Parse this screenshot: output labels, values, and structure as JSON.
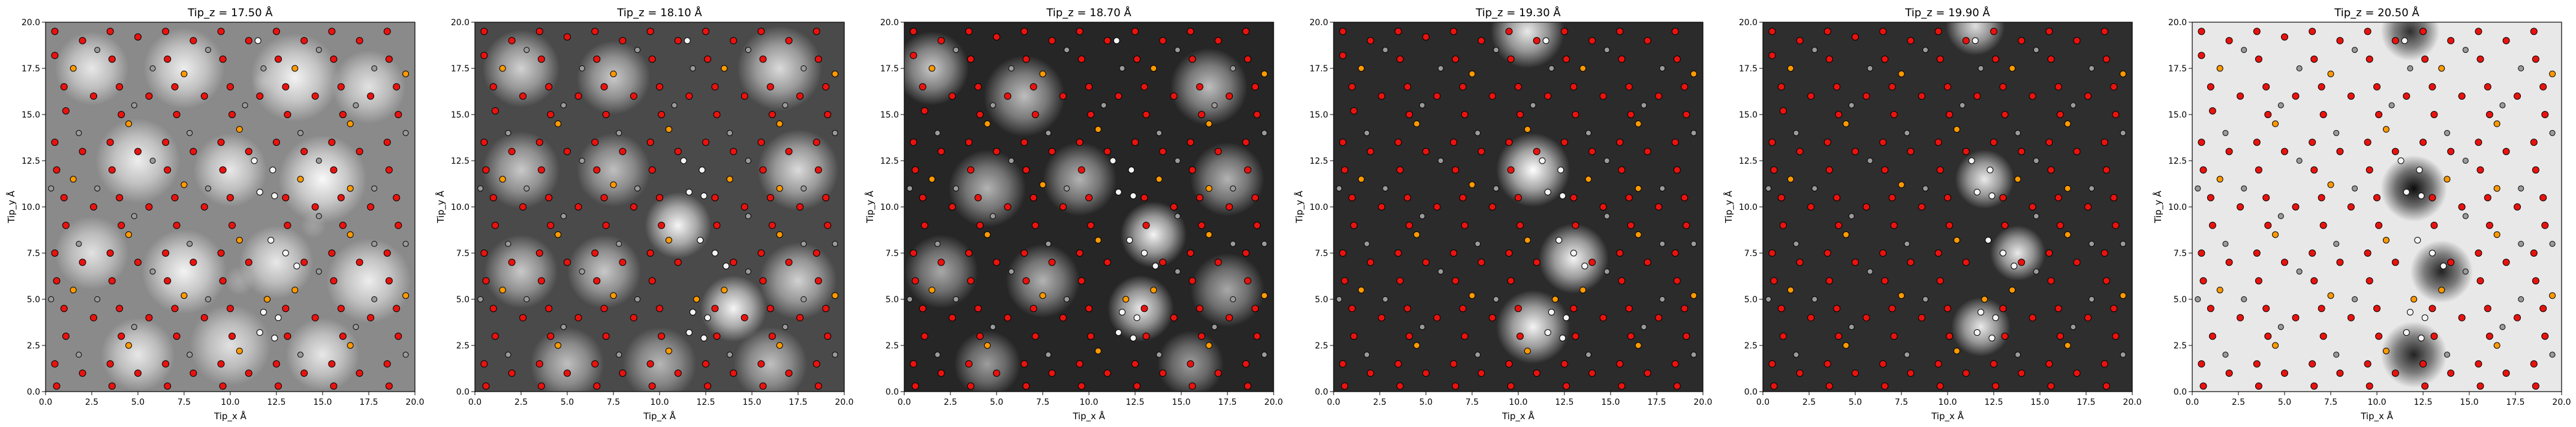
{
  "figure": {
    "description_none": ""
  },
  "chart_data": [
    {
      "type": "heatmap",
      "title": "Tip_z = 17.50 Å",
      "xlabel": "Tip_x Å",
      "ylabel": "Tip_y Å",
      "xlim": [
        0.0,
        20.0
      ],
      "ylim": [
        0.0,
        20.0
      ],
      "xticks": [
        "0.0",
        "2.5",
        "5.0",
        "7.5",
        "10.0",
        "12.5",
        "15.0",
        "17.5",
        "20.0"
      ],
      "yticks": [
        "0.0",
        "2.5",
        "5.0",
        "7.5",
        "10.0",
        "12.5",
        "15.0",
        "17.5",
        "20.0"
      ],
      "colormap": "gray",
      "background": "#8a8a8a",
      "blobs": [
        {
          "x": 2.5,
          "y": 17.5,
          "r": 2.0,
          "v": 0.8
        },
        {
          "x": 7.5,
          "y": 17.5,
          "r": 2.2,
          "v": 0.85
        },
        {
          "x": 13.5,
          "y": 17.0,
          "r": 2.4,
          "v": 0.9
        },
        {
          "x": 17.5,
          "y": 16.5,
          "r": 2.0,
          "v": 0.75
        },
        {
          "x": 5.0,
          "y": 12.5,
          "r": 2.3,
          "v": 0.85
        },
        {
          "x": 10.0,
          "y": 12.0,
          "r": 2.0,
          "v": 0.8
        },
        {
          "x": 15.0,
          "y": 11.5,
          "r": 2.4,
          "v": 0.95
        },
        {
          "x": 2.5,
          "y": 7.5,
          "r": 2.0,
          "v": 0.75
        },
        {
          "x": 7.5,
          "y": 6.5,
          "r": 2.3,
          "v": 0.9
        },
        {
          "x": 12.5,
          "y": 7.0,
          "r": 2.0,
          "v": 0.8
        },
        {
          "x": 17.5,
          "y": 6.0,
          "r": 2.3,
          "v": 0.85
        },
        {
          "x": 5.0,
          "y": 2.0,
          "r": 2.0,
          "v": 0.8
        },
        {
          "x": 10.0,
          "y": 2.5,
          "r": 2.2,
          "v": 0.75
        },
        {
          "x": 15.0,
          "y": 2.0,
          "r": 2.0,
          "v": 0.8
        },
        {
          "x": 11.8,
          "y": 16.8,
          "r": 0.6,
          "v": 0.15
        },
        {
          "x": 10.5,
          "y": 6.0,
          "r": 0.8,
          "v": 0.25
        },
        {
          "x": 14.5,
          "y": 9.0,
          "r": 0.7,
          "v": 0.2
        }
      ]
    },
    {
      "type": "heatmap",
      "title": "Tip_z = 18.10 Å",
      "xlabel": "Tip_x Å",
      "ylabel": "Tip_y Å",
      "xlim": [
        0.0,
        20.0
      ],
      "ylim": [
        0.0,
        20.0
      ],
      "xticks": [
        "0.0",
        "2.5",
        "5.0",
        "7.5",
        "10.0",
        "12.5",
        "15.0",
        "17.5",
        "20.0"
      ],
      "yticks": [
        "0.0",
        "2.5",
        "5.0",
        "7.5",
        "10.0",
        "12.5",
        "15.0",
        "17.5",
        "20.0"
      ],
      "colormap": "gray",
      "background": "#4a4a4a",
      "blobs": [
        {
          "x": 2.5,
          "y": 17.5,
          "r": 2.1,
          "v": 0.75
        },
        {
          "x": 7.5,
          "y": 17.0,
          "r": 2.0,
          "v": 0.7
        },
        {
          "x": 16.5,
          "y": 17.5,
          "r": 2.3,
          "v": 0.8
        },
        {
          "x": 2.5,
          "y": 12.0,
          "r": 2.1,
          "v": 0.7
        },
        {
          "x": 7.5,
          "y": 12.0,
          "r": 2.0,
          "v": 0.65
        },
        {
          "x": 17.5,
          "y": 12.0,
          "r": 2.2,
          "v": 0.8
        },
        {
          "x": 11.0,
          "y": 9.0,
          "r": 1.8,
          "v": 0.95
        },
        {
          "x": 14.0,
          "y": 4.5,
          "r": 1.8,
          "v": 0.95
        },
        {
          "x": 2.5,
          "y": 6.5,
          "r": 2.0,
          "v": 0.7
        },
        {
          "x": 7.0,
          "y": 6.5,
          "r": 2.0,
          "v": 0.7
        },
        {
          "x": 17.5,
          "y": 6.0,
          "r": 2.1,
          "v": 0.75
        },
        {
          "x": 5.0,
          "y": 1.5,
          "r": 2.0,
          "v": 0.65
        },
        {
          "x": 10.0,
          "y": 1.5,
          "r": 2.0,
          "v": 0.6
        },
        {
          "x": 16.0,
          "y": 1.5,
          "r": 2.0,
          "v": 0.65
        },
        {
          "x": 12.0,
          "y": 17.0,
          "r": 1.2,
          "v": 0.0
        },
        {
          "x": 13.0,
          "y": 7.0,
          "r": 1.0,
          "v": 0.0
        }
      ]
    },
    {
      "type": "heatmap",
      "title": "Tip_z = 18.70 Å",
      "xlabel": "Tip_x Å",
      "ylabel": "Tip_y Å",
      "xlim": [
        0.0,
        20.0
      ],
      "ylim": [
        0.0,
        20.0
      ],
      "xticks": [
        "0.0",
        "2.5",
        "5.0",
        "7.5",
        "10.0",
        "12.5",
        "15.0",
        "17.5",
        "20.0"
      ],
      "yticks": [
        "0.0",
        "2.5",
        "5.0",
        "7.5",
        "10.0",
        "12.5",
        "15.0",
        "17.5",
        "20.0"
      ],
      "colormap": "gray",
      "background": "#262626",
      "blobs": [
        {
          "x": 1.5,
          "y": 17.5,
          "r": 2.0,
          "v": 0.75
        },
        {
          "x": 6.5,
          "y": 16.0,
          "r": 2.2,
          "v": 0.7
        },
        {
          "x": 16.5,
          "y": 16.5,
          "r": 2.1,
          "v": 0.7
        },
        {
          "x": 4.5,
          "y": 11.0,
          "r": 2.1,
          "v": 0.65
        },
        {
          "x": 9.5,
          "y": 11.5,
          "r": 2.0,
          "v": 0.65
        },
        {
          "x": 17.5,
          "y": 11.5,
          "r": 2.0,
          "v": 0.65
        },
        {
          "x": 13.5,
          "y": 8.5,
          "r": 1.8,
          "v": 0.95
        },
        {
          "x": 12.8,
          "y": 4.5,
          "r": 1.8,
          "v": 0.9
        },
        {
          "x": 2.0,
          "y": 6.5,
          "r": 2.0,
          "v": 0.6
        },
        {
          "x": 7.5,
          "y": 6.0,
          "r": 2.0,
          "v": 0.65
        },
        {
          "x": 17.5,
          "y": 5.5,
          "r": 2.0,
          "v": 0.6
        },
        {
          "x": 4.5,
          "y": 1.5,
          "r": 1.8,
          "v": 0.55
        },
        {
          "x": 15.5,
          "y": 1.5,
          "r": 1.8,
          "v": 0.55
        }
      ]
    },
    {
      "type": "heatmap",
      "title": "Tip_z = 19.30 Å",
      "xlabel": "Tip_x Å",
      "ylabel": "Tip_y Å",
      "xlim": [
        0.0,
        20.0
      ],
      "ylim": [
        0.0,
        20.0
      ],
      "xticks": [
        "0.0",
        "2.5",
        "5.0",
        "7.5",
        "10.0",
        "12.5",
        "15.0",
        "17.5",
        "20.0"
      ],
      "yticks": [
        "0.0",
        "2.5",
        "5.0",
        "7.5",
        "10.0",
        "12.5",
        "15.0",
        "17.5",
        "20.0"
      ],
      "colormap": "gray",
      "background": "#2b2b2b",
      "blobs": [
        {
          "x": 10.5,
          "y": 19.5,
          "r": 2.0,
          "v": 0.9
        },
        {
          "x": 10.8,
          "y": 12.0,
          "r": 2.0,
          "v": 1.0
        },
        {
          "x": 13.0,
          "y": 7.2,
          "r": 1.9,
          "v": 0.95
        },
        {
          "x": 10.8,
          "y": 3.5,
          "r": 2.0,
          "v": 0.95
        }
      ]
    },
    {
      "type": "heatmap",
      "title": "Tip_z = 19.90 Å",
      "xlabel": "Tip_x Å",
      "ylabel": "Tip_y Å",
      "xlim": [
        0.0,
        20.0
      ],
      "ylim": [
        0.0,
        20.0
      ],
      "xticks": [
        "0.0",
        "2.5",
        "5.0",
        "7.5",
        "10.0",
        "12.5",
        "15.0",
        "17.5",
        "20.0"
      ],
      "yticks": [
        "0.0",
        "2.5",
        "5.0",
        "7.5",
        "10.0",
        "12.5",
        "15.0",
        "17.5",
        "20.0"
      ],
      "colormap": "gray",
      "background": "#2e2e2e",
      "blobs": [
        {
          "x": 11.5,
          "y": 19.8,
          "r": 1.6,
          "v": 0.85
        },
        {
          "x": 12.0,
          "y": 11.5,
          "r": 1.6,
          "v": 0.9
        },
        {
          "x": 13.8,
          "y": 7.5,
          "r": 1.5,
          "v": 0.9
        },
        {
          "x": 11.8,
          "y": 3.5,
          "r": 1.6,
          "v": 0.9
        }
      ]
    },
    {
      "type": "heatmap",
      "title": "Tip_z = 20.50 Å",
      "xlabel": "Tip_x Å",
      "ylabel": "Tip_y Å",
      "xlim": [
        0.0,
        20.0
      ],
      "ylim": [
        0.0,
        20.0
      ],
      "xticks": [
        "0.0",
        "2.5",
        "5.0",
        "7.5",
        "10.0",
        "12.5",
        "15.0",
        "17.5",
        "20.0"
      ],
      "yticks": [
        "0.0",
        "2.5",
        "5.0",
        "7.5",
        "10.0",
        "12.5",
        "15.0",
        "17.5",
        "20.0"
      ],
      "colormap": "gray",
      "background": "#e8e8e8",
      "blobs": [
        {
          "x": 11.8,
          "y": 19.5,
          "r": 1.6,
          "v": -0.8
        },
        {
          "x": 12.0,
          "y": 11.0,
          "r": 1.8,
          "v": -0.95
        },
        {
          "x": 13.5,
          "y": 6.5,
          "r": 1.7,
          "v": -0.85
        },
        {
          "x": 12.0,
          "y": 2.0,
          "r": 1.8,
          "v": -0.85
        }
      ]
    }
  ],
  "atoms": {
    "colors": {
      "red": "#e8130f",
      "orange": "#ff9900",
      "gray": "#9a9a9a",
      "white": "#f4f4f4"
    },
    "red": [
      [
        0.5,
        19.5
      ],
      [
        0.5,
        18.2
      ],
      [
        2.0,
        19.0
      ],
      [
        3.5,
        19.5
      ],
      [
        3.6,
        18.0
      ],
      [
        5.0,
        19.2
      ],
      [
        6.5,
        19.5
      ],
      [
        6.6,
        18.0
      ],
      [
        8.0,
        19.0
      ],
      [
        9.5,
        19.5
      ],
      [
        9.6,
        18.0
      ],
      [
        11.0,
        19.0
      ],
      [
        12.5,
        19.5
      ],
      [
        12.6,
        18.0
      ],
      [
        14.0,
        19.0
      ],
      [
        15.5,
        19.5
      ],
      [
        15.6,
        18.0
      ],
      [
        17.0,
        19.0
      ],
      [
        18.5,
        19.5
      ],
      [
        18.6,
        18.0
      ],
      [
        1.0,
        16.5
      ],
      [
        1.1,
        15.2
      ],
      [
        2.6,
        16.0
      ],
      [
        4.0,
        16.5
      ],
      [
        4.1,
        15.0
      ],
      [
        5.6,
        16.0
      ],
      [
        7.0,
        16.5
      ],
      [
        7.1,
        15.0
      ],
      [
        8.6,
        16.0
      ],
      [
        10.0,
        16.5
      ],
      [
        10.1,
        15.0
      ],
      [
        11.6,
        16.0
      ],
      [
        13.0,
        16.5
      ],
      [
        13.1,
        15.0
      ],
      [
        14.6,
        16.0
      ],
      [
        16.0,
        16.5
      ],
      [
        16.1,
        15.0
      ],
      [
        17.6,
        16.0
      ],
      [
        19.0,
        16.5
      ],
      [
        19.1,
        15.0
      ],
      [
        0.5,
        13.5
      ],
      [
        0.6,
        12.0
      ],
      [
        2.0,
        13.0
      ],
      [
        3.5,
        13.5
      ],
      [
        3.6,
        12.0
      ],
      [
        5.0,
        13.0
      ],
      [
        6.5,
        13.5
      ],
      [
        6.6,
        12.0
      ],
      [
        8.0,
        13.0
      ],
      [
        9.5,
        13.5
      ],
      [
        9.6,
        12.0
      ],
      [
        11.0,
        13.0
      ],
      [
        12.5,
        13.5
      ],
      [
        14.0,
        13.0
      ],
      [
        15.5,
        13.5
      ],
      [
        15.6,
        12.0
      ],
      [
        17.0,
        13.0
      ],
      [
        18.5,
        13.5
      ],
      [
        18.6,
        12.0
      ],
      [
        1.0,
        10.5
      ],
      [
        1.1,
        9.0
      ],
      [
        2.6,
        10.0
      ],
      [
        4.0,
        10.5
      ],
      [
        4.1,
        9.0
      ],
      [
        5.6,
        10.0
      ],
      [
        7.0,
        10.5
      ],
      [
        7.1,
        9.0
      ],
      [
        8.6,
        10.0
      ],
      [
        10.0,
        10.5
      ],
      [
        10.1,
        9.0
      ],
      [
        13.0,
        10.5
      ],
      [
        13.1,
        9.0
      ],
      [
        14.6,
        10.0
      ],
      [
        16.0,
        10.5
      ],
      [
        16.1,
        9.0
      ],
      [
        17.6,
        10.0
      ],
      [
        19.0,
        10.5
      ],
      [
        19.1,
        9.0
      ],
      [
        0.5,
        7.5
      ],
      [
        0.6,
        6.0
      ],
      [
        2.0,
        7.0
      ],
      [
        3.5,
        7.5
      ],
      [
        3.6,
        6.0
      ],
      [
        5.0,
        7.0
      ],
      [
        6.5,
        7.5
      ],
      [
        6.6,
        6.0
      ],
      [
        8.0,
        7.0
      ],
      [
        9.5,
        7.5
      ],
      [
        9.6,
        6.0
      ],
      [
        11.0,
        7.0
      ],
      [
        14.0,
        7.0
      ],
      [
        15.5,
        7.5
      ],
      [
        15.6,
        6.0
      ],
      [
        17.0,
        7.0
      ],
      [
        18.5,
        7.5
      ],
      [
        18.6,
        6.0
      ],
      [
        1.0,
        4.5
      ],
      [
        1.1,
        3.0
      ],
      [
        2.6,
        4.0
      ],
      [
        4.0,
        4.5
      ],
      [
        4.1,
        3.0
      ],
      [
        5.6,
        4.0
      ],
      [
        7.0,
        4.5
      ],
      [
        7.1,
        3.0
      ],
      [
        8.6,
        4.0
      ],
      [
        10.0,
        4.5
      ],
      [
        10.1,
        3.0
      ],
      [
        13.0,
        4.5
      ],
      [
        13.1,
        3.0
      ],
      [
        14.6,
        4.0
      ],
      [
        16.0,
        4.5
      ],
      [
        16.1,
        3.0
      ],
      [
        17.6,
        4.0
      ],
      [
        19.0,
        4.5
      ],
      [
        19.1,
        3.0
      ],
      [
        0.5,
        1.5
      ],
      [
        0.6,
        0.3
      ],
      [
        2.0,
        1.0
      ],
      [
        3.5,
        1.5
      ],
      [
        3.6,
        0.3
      ],
      [
        5.0,
        1.0
      ],
      [
        6.5,
        1.5
      ],
      [
        6.6,
        0.3
      ],
      [
        8.0,
        1.0
      ],
      [
        9.5,
        1.5
      ],
      [
        9.6,
        0.3
      ],
      [
        11.0,
        1.0
      ],
      [
        12.5,
        1.5
      ],
      [
        12.6,
        0.3
      ],
      [
        14.0,
        1.0
      ],
      [
        15.5,
        1.5
      ],
      [
        15.6,
        0.3
      ],
      [
        17.0,
        1.0
      ],
      [
        18.5,
        1.5
      ],
      [
        18.6,
        0.3
      ]
    ],
    "orange": [
      [
        1.5,
        17.5
      ],
      [
        7.5,
        17.2
      ],
      [
        13.5,
        17.5
      ],
      [
        19.5,
        17.2
      ],
      [
        4.5,
        14.5
      ],
      [
        10.5,
        14.2
      ],
      [
        16.5,
        14.5
      ],
      [
        1.5,
        11.5
      ],
      [
        7.5,
        11.2
      ],
      [
        16.5,
        11.0
      ],
      [
        4.5,
        8.5
      ],
      [
        10.5,
        8.2
      ],
      [
        16.5,
        8.5
      ],
      [
        1.5,
        5.5
      ],
      [
        7.5,
        5.2
      ],
      [
        13.5,
        5.5
      ],
      [
        19.5,
        5.2
      ],
      [
        4.5,
        2.5
      ],
      [
        10.5,
        2.2
      ],
      [
        16.5,
        2.5
      ],
      [
        13.8,
        11.5
      ],
      [
        12.0,
        5.0
      ]
    ],
    "gray": [
      [
        2.8,
        18.5
      ],
      [
        5.8,
        17.5
      ],
      [
        8.8,
        18.5
      ],
      [
        11.8,
        17.5
      ],
      [
        14.8,
        18.5
      ],
      [
        17.8,
        17.5
      ],
      [
        1.8,
        14.0
      ],
      [
        4.8,
        15.5
      ],
      [
        7.8,
        14.0
      ],
      [
        10.8,
        15.5
      ],
      [
        13.8,
        14.0
      ],
      [
        16.8,
        15.5
      ],
      [
        2.8,
        11.0
      ],
      [
        5.8,
        12.5
      ],
      [
        8.8,
        11.0
      ],
      [
        14.8,
        12.5
      ],
      [
        17.8,
        11.0
      ],
      [
        1.8,
        8.0
      ],
      [
        4.8,
        9.5
      ],
      [
        7.8,
        8.0
      ],
      [
        14.8,
        9.5
      ],
      [
        17.8,
        8.0
      ],
      [
        2.8,
        5.0
      ],
      [
        5.8,
        6.5
      ],
      [
        8.8,
        5.0
      ],
      [
        14.8,
        6.5
      ],
      [
        17.8,
        5.0
      ],
      [
        1.8,
        2.0
      ],
      [
        4.8,
        3.5
      ],
      [
        7.8,
        2.0
      ],
      [
        13.8,
        2.0
      ],
      [
        16.8,
        3.5
      ],
      [
        19.5,
        14.0
      ],
      [
        19.5,
        8.0
      ],
      [
        19.5,
        2.0
      ],
      [
        0.3,
        11.0
      ],
      [
        0.3,
        5.0
      ]
    ],
    "white": [
      [
        11.5,
        19.0
      ],
      [
        11.3,
        12.5
      ],
      [
        12.3,
        12.0
      ],
      [
        11.6,
        10.8
      ],
      [
        12.4,
        10.6
      ],
      [
        12.2,
        8.2
      ],
      [
        13.0,
        7.5
      ],
      [
        13.6,
        6.8
      ],
      [
        11.8,
        4.3
      ],
      [
        12.6,
        4.0
      ],
      [
        11.6,
        3.2
      ],
      [
        12.4,
        2.9
      ]
    ]
  }
}
